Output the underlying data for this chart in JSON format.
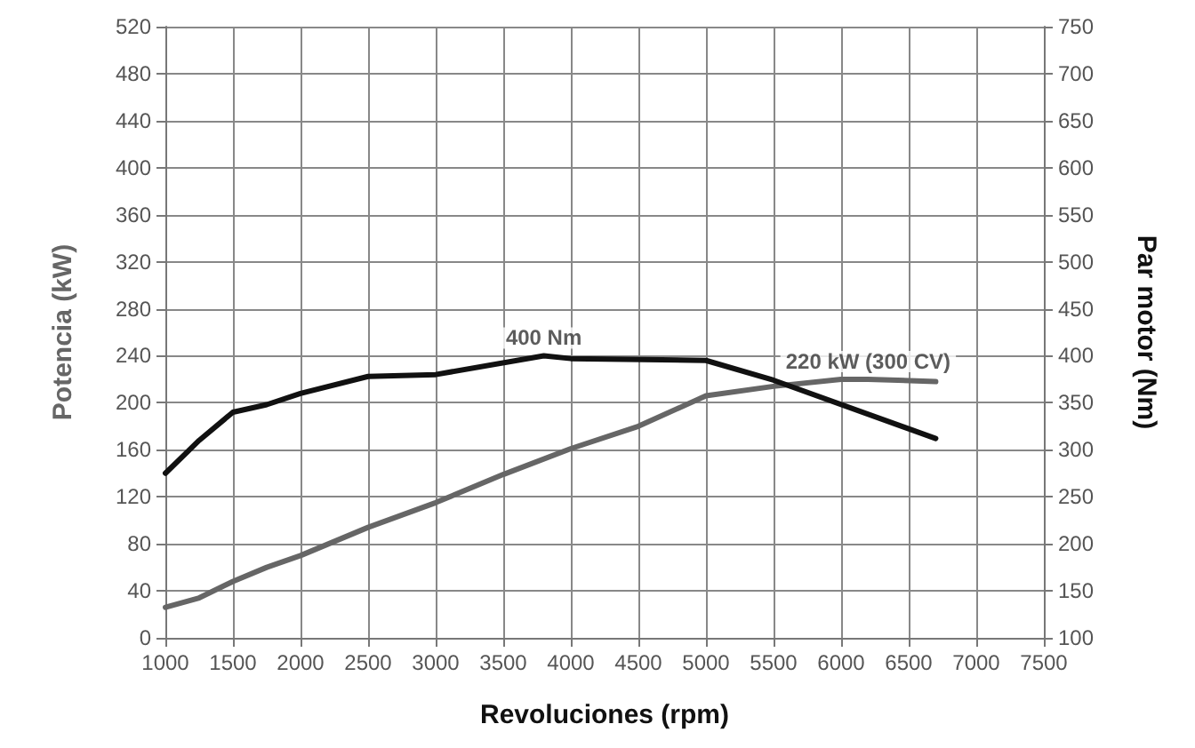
{
  "chart_data": {
    "type": "line",
    "xlabel": "Revoluciones (rpm)",
    "ylabel": "Potencia (kW)",
    "y2label": "Par motor (Nm)",
    "x": [
      1000,
      1250,
      1500,
      1750,
      2000,
      2500,
      3000,
      3500,
      4000,
      4500,
      5000,
      5500,
      6000,
      6200,
      6700
    ],
    "series": [
      {
        "color": "#666666",
        "values": [
          26,
          34,
          48,
          60,
          70,
          94,
          115,
          139,
          161,
          180,
          206,
          214,
          220,
          220,
          218
        ]
      },
      {
        "color": "#111111",
        "axis": "y2",
        "x": [
          1000,
          1250,
          1500,
          1750,
          2000,
          2500,
          3000,
          3800,
          4000,
          5000,
          5500,
          6700
        ],
        "values": [
          275,
          310,
          340,
          348,
          360,
          378,
          380,
          400,
          397,
          395,
          374,
          312
        ]
      }
    ],
    "annotations": [
      {
        "text": "400 Nm",
        "x": 3800,
        "y": 240
      },
      {
        "text": "220 kW (300 CV)",
        "x": 6200,
        "y": 220
      }
    ],
    "xlim": [
      1000,
      7500
    ],
    "xticks": [
      1000,
      1500,
      2000,
      2500,
      3000,
      3500,
      4000,
      4500,
      5000,
      5500,
      6000,
      6500,
      7000,
      7500
    ],
    "ylim": [
      0,
      520
    ],
    "yticks": [
      0,
      40,
      80,
      120,
      160,
      200,
      240,
      280,
      320,
      360,
      400,
      440,
      480,
      520
    ],
    "y2lim": [
      100,
      750
    ],
    "y2ticks": [
      100,
      150,
      200,
      250,
      300,
      350,
      400,
      450,
      500,
      550,
      600,
      650,
      700,
      750
    ],
    "grid": true,
    "marker": "none",
    "line_style": "solid"
  }
}
